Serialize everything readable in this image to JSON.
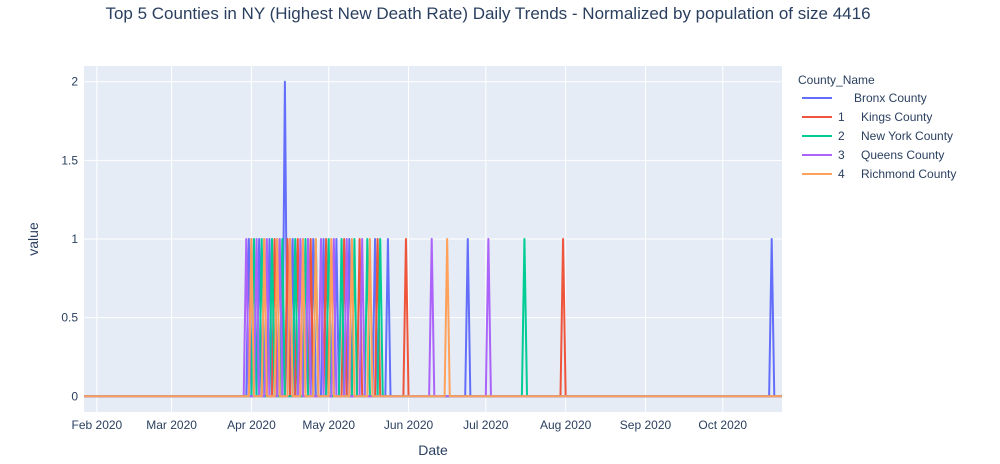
{
  "chart_data": {
    "type": "line",
    "title": "Top 5 Counties in NY (Highest New Death Rate) Daily Trends - Normalized by population of size 4416",
    "xlabel": "Date",
    "ylabel": "value",
    "xlim": [
      "2020-01-27",
      "2020-10-24"
    ],
    "ylim": [
      -0.1,
      2.1
    ],
    "grid": true,
    "legend_title": "County_Name",
    "legend_position": "right",
    "x_ticks": [
      {
        "date": "2020-02-01",
        "label": "Feb 2020"
      },
      {
        "date": "2020-03-01",
        "label": "Mar 2020"
      },
      {
        "date": "2020-04-01",
        "label": "Apr 2020"
      },
      {
        "date": "2020-05-01",
        "label": "May 2020"
      },
      {
        "date": "2020-06-01",
        "label": "Jun 2020"
      },
      {
        "date": "2020-07-01",
        "label": "Jul 2020"
      },
      {
        "date": "2020-08-01",
        "label": "Aug 2020"
      },
      {
        "date": "2020-09-01",
        "label": "Sep 2020"
      },
      {
        "date": "2020-10-01",
        "label": "Oct 2020"
      }
    ],
    "y_ticks": [
      {
        "value": 0,
        "label": "0"
      },
      {
        "value": 0.5,
        "label": "0.5"
      },
      {
        "value": 1,
        "label": "1"
      },
      {
        "value": 1.5,
        "label": "1.5"
      },
      {
        "value": 2,
        "label": "2"
      }
    ],
    "series_date_range": [
      "2020-01-27",
      "2020-10-24"
    ],
    "series": [
      {
        "name": "Bronx County",
        "legend_index": "",
        "color": "#636efa",
        "spikes": [
          {
            "date": "2020-03-31",
            "value": 1
          },
          {
            "date": "2020-04-04",
            "value": 1
          },
          {
            "date": "2020-04-08",
            "value": 1
          },
          {
            "date": "2020-04-11",
            "value": 1
          },
          {
            "date": "2020-04-14",
            "value": 2
          },
          {
            "date": "2020-04-17",
            "value": 1
          },
          {
            "date": "2020-04-21",
            "value": 1
          },
          {
            "date": "2020-04-25",
            "value": 1
          },
          {
            "date": "2020-04-29",
            "value": 1
          },
          {
            "date": "2020-05-04",
            "value": 1
          },
          {
            "date": "2020-05-09",
            "value": 1
          },
          {
            "date": "2020-05-19",
            "value": 1
          },
          {
            "date": "2020-05-24",
            "value": 1
          },
          {
            "date": "2020-06-24",
            "value": 1
          },
          {
            "date": "2020-10-20",
            "value": 1
          }
        ]
      },
      {
        "name": "Kings County",
        "legend_index": "1",
        "color": "#ef553b",
        "spikes": [
          {
            "date": "2020-04-01",
            "value": 1
          },
          {
            "date": "2020-04-06",
            "value": 1
          },
          {
            "date": "2020-04-10",
            "value": 1
          },
          {
            "date": "2020-04-15",
            "value": 1
          },
          {
            "date": "2020-04-19",
            "value": 1
          },
          {
            "date": "2020-04-24",
            "value": 1
          },
          {
            "date": "2020-04-30",
            "value": 1
          },
          {
            "date": "2020-05-07",
            "value": 1
          },
          {
            "date": "2020-05-13",
            "value": 1
          },
          {
            "date": "2020-05-20",
            "value": 1
          },
          {
            "date": "2020-05-31",
            "value": 1
          },
          {
            "date": "2020-07-31",
            "value": 1
          }
        ]
      },
      {
        "name": "New York County",
        "legend_index": "2",
        "color": "#00cc96",
        "spikes": [
          {
            "date": "2020-04-02",
            "value": 1
          },
          {
            "date": "2020-04-05",
            "value": 1
          },
          {
            "date": "2020-04-09",
            "value": 1
          },
          {
            "date": "2020-04-13",
            "value": 1
          },
          {
            "date": "2020-04-18",
            "value": 1
          },
          {
            "date": "2020-04-22",
            "value": 1
          },
          {
            "date": "2020-04-26",
            "value": 1
          },
          {
            "date": "2020-05-01",
            "value": 1
          },
          {
            "date": "2020-05-06",
            "value": 1
          },
          {
            "date": "2020-05-11",
            "value": 1
          },
          {
            "date": "2020-05-16",
            "value": 1
          },
          {
            "date": "2020-05-21",
            "value": 1
          },
          {
            "date": "2020-07-16",
            "value": 1
          }
        ]
      },
      {
        "name": "Queens County",
        "legend_index": "3",
        "color": "#ab63fa",
        "spikes": [
          {
            "date": "2020-03-30",
            "value": 1
          },
          {
            "date": "2020-04-03",
            "value": 1
          },
          {
            "date": "2020-04-07",
            "value": 1
          },
          {
            "date": "2020-04-12",
            "value": 1
          },
          {
            "date": "2020-04-16",
            "value": 1
          },
          {
            "date": "2020-04-20",
            "value": 1
          },
          {
            "date": "2020-04-23",
            "value": 1
          },
          {
            "date": "2020-04-28",
            "value": 1
          },
          {
            "date": "2020-05-03",
            "value": 1
          },
          {
            "date": "2020-05-08",
            "value": 1
          },
          {
            "date": "2020-05-14",
            "value": 1
          },
          {
            "date": "2020-06-10",
            "value": 1
          },
          {
            "date": "2020-07-02",
            "value": 1
          }
        ]
      },
      {
        "name": "Richmond County",
        "legend_index": "4",
        "color": "#ffa15a",
        "spikes": [
          {
            "date": "2020-04-01",
            "value": 1
          },
          {
            "date": "2020-04-06",
            "value": 1
          },
          {
            "date": "2020-04-11",
            "value": 1
          },
          {
            "date": "2020-04-16",
            "value": 1
          },
          {
            "date": "2020-04-21",
            "value": 1
          },
          {
            "date": "2020-04-26",
            "value": 1
          },
          {
            "date": "2020-05-02",
            "value": 1
          },
          {
            "date": "2020-05-10",
            "value": 1
          },
          {
            "date": "2020-05-17",
            "value": 1
          },
          {
            "date": "2020-06-16",
            "value": 1
          }
        ]
      }
    ]
  },
  "colors": {
    "plot_background": "#e5ecf6",
    "grid": "#ffffff",
    "text": "#2a3f5f"
  }
}
